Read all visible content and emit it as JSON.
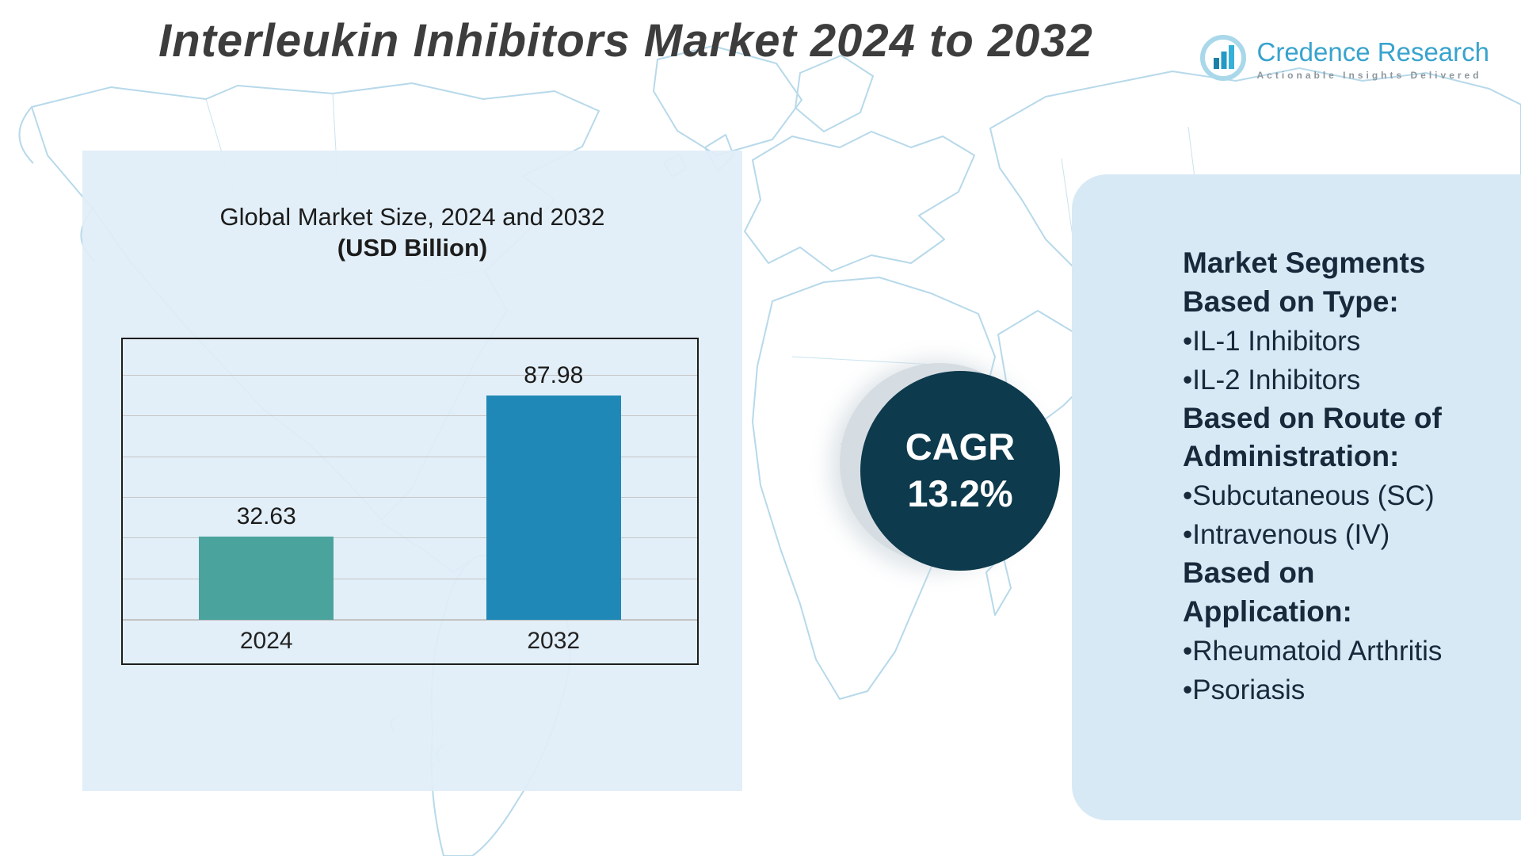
{
  "header": {
    "title": "Interleukin Inhibitors Market 2024 to 2032"
  },
  "logo": {
    "name": "Credence Research",
    "tagline": "Actionable Insights Delivered"
  },
  "chart_data": {
    "type": "bar",
    "title": "Global Market Size, 2024 and 2032",
    "subtitle": "(USD Billion)",
    "categories": [
      "2024",
      "2032"
    ],
    "values": [
      32.63,
      87.98
    ],
    "ylim": [
      0,
      110
    ],
    "grid": true,
    "legend": "none",
    "bar_colors": [
      "#4aa39c",
      "#2088b6"
    ]
  },
  "cagr_badge": {
    "label": "CAGR",
    "value": "13.2%",
    "background": "#0d3a4d"
  },
  "segments_panel": {
    "bullet": "•",
    "background": "#d7e9f5",
    "sections": [
      {
        "heading_lines": [
          "Market Segments",
          "Based on Type:"
        ],
        "items": [
          "IL-1 Inhibitors",
          "IL-2 Inhibitors"
        ]
      },
      {
        "heading_lines": [
          "Based on Route of",
          "Administration:"
        ],
        "items": [
          "Subcutaneous (SC)",
          "Intravenous (IV)"
        ]
      },
      {
        "heading_lines": [
          "Based on",
          "Application:"
        ],
        "items": [
          "Rheumatoid Arthritis",
          "Psoriasis"
        ]
      }
    ]
  },
  "colors": {
    "map_stroke": "#b7d9ea",
    "left_panel_bg": "#e0eef7",
    "title_text": "#3d3d3d",
    "logo_accent": "#38a3cd"
  }
}
